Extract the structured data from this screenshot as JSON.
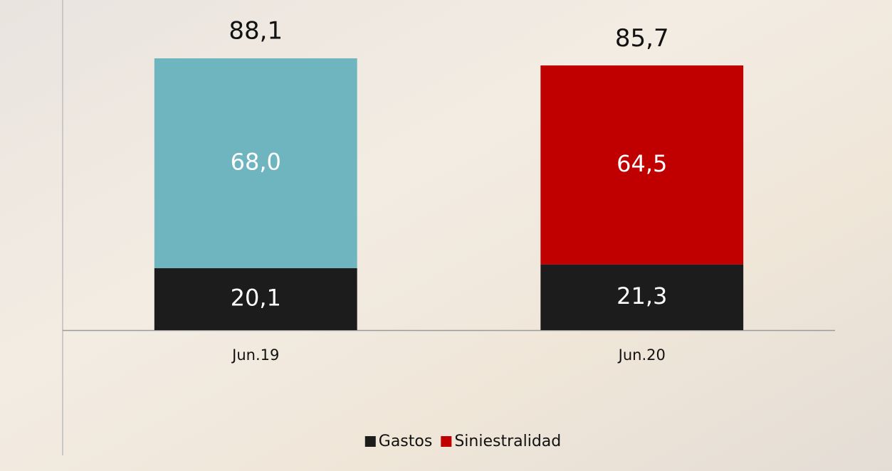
{
  "chart_data": {
    "type": "stacked_bar",
    "categories": [
      "Jun.19",
      "Jun.20"
    ],
    "series": [
      {
        "name": "Gastos",
        "color": "#1c1c1c",
        "values": [
          20.1,
          21.3
        ],
        "value_labels": [
          "20,1",
          "21,3"
        ]
      },
      {
        "name": "Siniestralidad",
        "color": "#c00000",
        "colors": [
          "#6fb5bf",
          "#c00000"
        ],
        "values": [
          68.0,
          64.5
        ],
        "value_labels": [
          "68,0",
          "64,5"
        ]
      }
    ],
    "totals": [
      88.1,
      85.7
    ],
    "total_labels": [
      "88,1",
      "85,7"
    ],
    "ylim": [
      0,
      100
    ],
    "legend": "bottom"
  }
}
